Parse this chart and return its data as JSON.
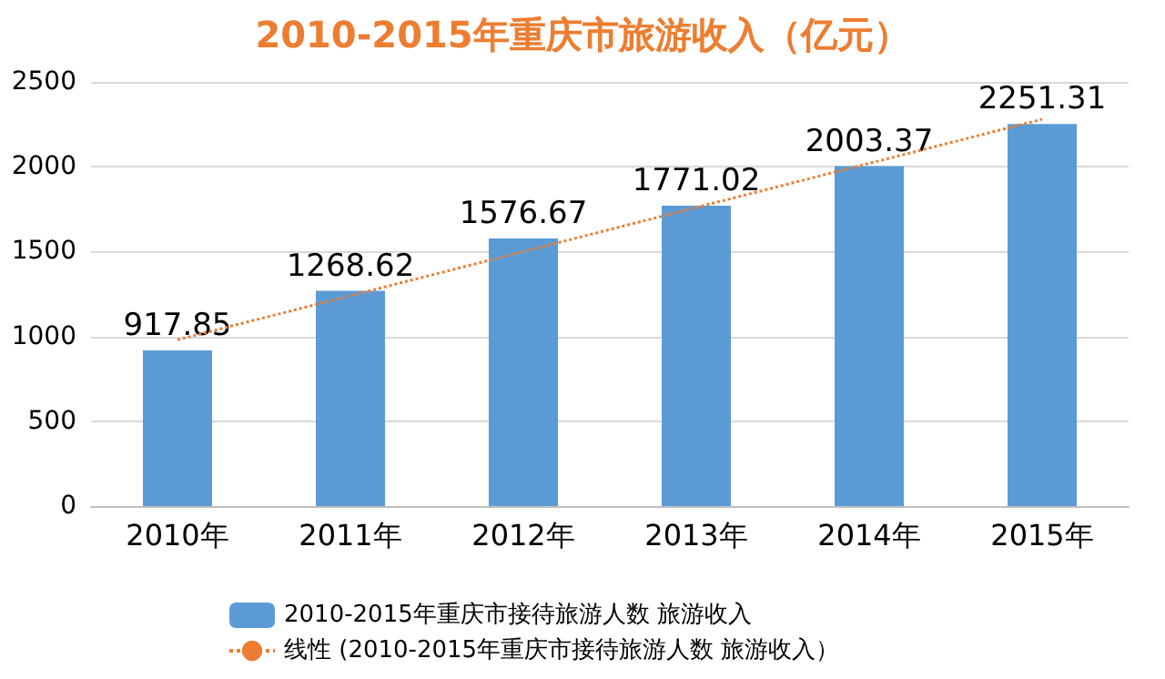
{
  "chart_data": {
    "type": "bar",
    "title": "2010-2015年重庆市旅游收入（亿元）",
    "categories": [
      "2010年",
      "2011年",
      "2012年",
      "2013年",
      "2014年",
      "2015年"
    ],
    "series": [
      {
        "name": "2010-2015年重庆市接待旅游人数 旅游收入",
        "color": "#5b9bd5",
        "values": [
          917.85,
          1268.62,
          1576.67,
          1771.02,
          2003.37,
          2251.31
        ],
        "value_labels": [
          "917.85",
          "1268.62",
          "1576.67",
          "1771.02",
          "2003.37",
          "2251.31"
        ]
      },
      {
        "name": "线性 (2010-2015年重庆市接待旅游人数 旅游收入）",
        "type": "line",
        "color": "#ed7d31",
        "line_style": "dotted",
        "marker": "none",
        "values": [
          980,
          1240,
          1500,
          1760,
          2020,
          2280
        ]
      }
    ],
    "ylim": [
      0,
      2500
    ],
    "yticks": [
      0,
      500,
      1000,
      1500,
      2000,
      2500
    ],
    "grid": "y",
    "legend": "bottom"
  }
}
